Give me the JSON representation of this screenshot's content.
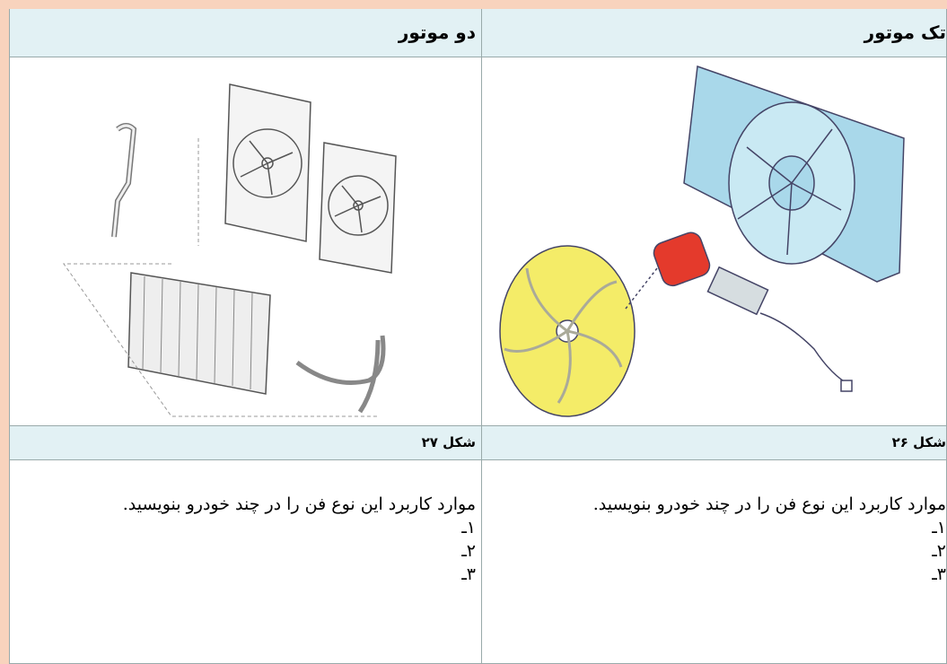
{
  "table": {
    "headers": [
      "دو موتور",
      "تک موتور"
    ],
    "captions": [
      "شکل ۲۷",
      "شکل ۲۶"
    ],
    "cells": [
      {
        "prompt": "موارد کاربرد این نوع فن را در چند خودرو بنویسید.",
        "items": [
          "۱ـ",
          "۲ـ",
          "۳ـ"
        ]
      },
      {
        "prompt": "موارد کاربرد این نوع فن را در چند خودرو بنویسید.",
        "items": [
          "۱ـ",
          "۲ـ",
          "۳ـ"
        ]
      }
    ]
  }
}
